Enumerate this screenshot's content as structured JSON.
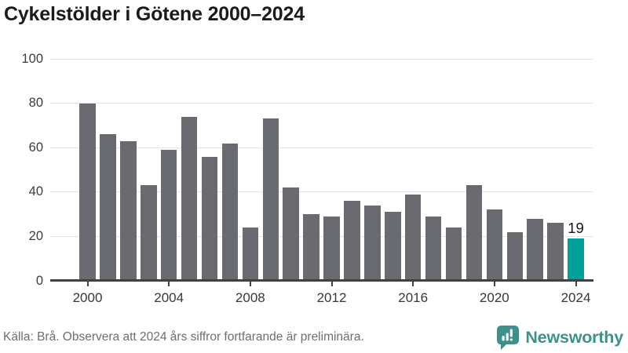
{
  "title": "Cykelstölder i Götene 2000–2024",
  "footer": {
    "source_note": "Källa: Brå. Observera att 2024 års siffror fortfarande är preliminära.",
    "brand": "Newsworthy"
  },
  "colors": {
    "bar": "#6a6a71",
    "highlight": "#00a19a",
    "axis": "#414141",
    "gridline": "#e4e4e4",
    "title_text": "#1b1b1b",
    "tick_text": "#3c3c3c",
    "footer_text": "#6e6e6e",
    "brand_teal": "#3e918b"
  },
  "chart_data": {
    "type": "bar",
    "title": "Cykelstölder i Götene 2000–2024",
    "xlabel": "",
    "ylabel": "",
    "categories": [
      2000,
      2001,
      2002,
      2003,
      2004,
      2005,
      2006,
      2007,
      2008,
      2009,
      2010,
      2011,
      2012,
      2013,
      2014,
      2015,
      2016,
      2017,
      2018,
      2019,
      2020,
      2021,
      2022,
      2023,
      2024
    ],
    "values": [
      80,
      66,
      63,
      43,
      59,
      74,
      56,
      62,
      24,
      73,
      42,
      30,
      29,
      36,
      34,
      31,
      39,
      29,
      24,
      43,
      32,
      22,
      28,
      26,
      19
    ],
    "ylim": [
      0,
      100
    ],
    "yticks": [
      0,
      20,
      40,
      60,
      80,
      100
    ],
    "xticks": [
      2000,
      2004,
      2008,
      2012,
      2016,
      2020,
      2024
    ],
    "grid": true,
    "legend": false,
    "highlight_index": 24,
    "highlight_label": "19"
  }
}
